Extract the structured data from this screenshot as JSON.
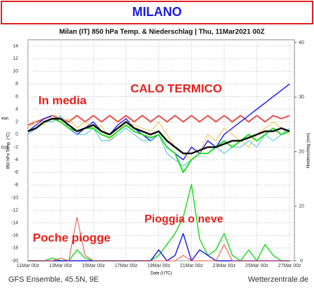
{
  "chart_data": {
    "type": "line",
    "banner": "MILANO",
    "title": "Milan  (IT)  850 hPa Temp. & Niederschlag | Thu, 11Mar2021 00Z",
    "ylabel": "850 hPa Temp. (°C)",
    "y2label": "Niederschlag (mm)",
    "xlabel": "Date (UTC)",
    "cut_labels": [
      "ean",
      "010"
    ],
    "annotations": [
      "In media",
      "CALO TERMICO",
      "Pioggia o neve",
      "Poche piogge"
    ],
    "footer_left": "GFS Ensemble, 45.5N, 9E",
    "footer_right": "Wetterzentrale.de",
    "grid": true,
    "x": [
      0,
      0.5,
      1,
      1.5,
      2,
      2.5,
      3,
      3.5,
      4,
      4.5,
      5,
      5.5,
      6,
      6.5,
      7,
      7.5,
      8,
      8.5,
      9,
      9.5,
      10,
      10.5,
      11,
      11.5,
      12,
      12.5,
      13,
      13.5,
      14,
      14.5,
      15,
      15.5,
      16
    ],
    "xlim": [
      0,
      16.3
    ],
    "xticks": [
      {
        "value": 0,
        "label": "11Mar 00z"
      },
      {
        "value": 2,
        "label": "13Mar 00z"
      },
      {
        "value": 4,
        "label": "15Mar 00z"
      },
      {
        "value": 6,
        "label": "17Mar 00z"
      },
      {
        "value": 8,
        "label": "19Mar 00z"
      },
      {
        "value": 10,
        "label": "21Mar 00z"
      },
      {
        "value": 12,
        "label": "23Mar 00z"
      },
      {
        "value": 14,
        "label": "25Mar 00z"
      },
      {
        "value": 16,
        "label": "27Mar 00z"
      }
    ],
    "ylim": [
      -20,
      15
    ],
    "yticks": [
      14,
      12,
      10,
      8,
      6,
      4,
      2,
      0,
      -2,
      -4,
      -6,
      -8,
      -10,
      -12,
      -14,
      -16,
      -18,
      -20
    ],
    "y2lim": [
      0,
      40.5
    ],
    "y2ticks": [
      0,
      10,
      20,
      30,
      40
    ],
    "series": [
      {
        "color": "#e8504a",
        "width": 2,
        "values": [
          1.5,
          2,
          2.5,
          3,
          2.5,
          2,
          3,
          2,
          3,
          2,
          3,
          2,
          3,
          2,
          3,
          2,
          3,
          2,
          3,
          2,
          3,
          2,
          3,
          2,
          3,
          2,
          3,
          2,
          3,
          2,
          3,
          2.5,
          3
        ]
      },
      {
        "color": "#2222ee",
        "width": 1.5,
        "values": [
          0.5,
          1.5,
          2.5,
          3,
          2,
          1,
          0,
          1,
          2,
          0.5,
          0,
          1.5,
          2.5,
          1,
          0,
          -1,
          0,
          -2,
          -3,
          -4,
          -2,
          -3,
          -1,
          -2,
          0,
          1,
          2,
          3,
          4,
          5,
          6,
          7,
          8
        ]
      },
      {
        "color": "#f0c040",
        "width": 1,
        "values": [
          1,
          2,
          1.5,
          3,
          2,
          2.5,
          1,
          2,
          1,
          1.5,
          -1,
          0.5,
          2,
          1.5,
          1,
          0.5,
          2,
          0,
          -2,
          -3,
          -4,
          -3,
          0,
          -1,
          1,
          0,
          -1,
          -2,
          0,
          1,
          2,
          1,
          0
        ]
      },
      {
        "color": "#40c0e0",
        "width": 1,
        "values": [
          0,
          1,
          2,
          2,
          3,
          1,
          0,
          0,
          1,
          -1,
          -1,
          0,
          1,
          0,
          -1,
          -1,
          0,
          -3,
          -4,
          -5,
          -4,
          -3,
          -3,
          -2,
          -3,
          -2,
          -2,
          -1,
          -2,
          0,
          -1,
          0,
          1
        ]
      },
      {
        "color": "#22dd22",
        "width": 2,
        "values": [
          0.5,
          1,
          2,
          2.5,
          2,
          1,
          0.5,
          1,
          1,
          0,
          -0.5,
          0.5,
          1.5,
          0.5,
          0,
          -0.5,
          0,
          -2,
          -3,
          -6,
          -4,
          -3,
          -3,
          -2,
          -1,
          -2,
          -1,
          0,
          -1,
          0,
          1,
          0,
          0.5
        ]
      },
      {
        "color": "#111111",
        "width": 2.5,
        "values": [
          0.5,
          1,
          2,
          2.5,
          2.5,
          1.5,
          0.5,
          1,
          1.5,
          0.5,
          0,
          1,
          2,
          1,
          0.5,
          0,
          0.5,
          -1,
          -2,
          -3,
          -3,
          -2.5,
          -2,
          -2,
          -1.5,
          -1,
          -1,
          -0.5,
          0,
          0.5,
          0.5,
          1,
          0.5
        ]
      },
      {
        "axis": "y2",
        "color": "#22dd22",
        "width": 1.5,
        "values": [
          0,
          0,
          0,
          0.5,
          0,
          0,
          2,
          0.5,
          0,
          0,
          0,
          0,
          0,
          0,
          0,
          0,
          1,
          3,
          5,
          8,
          14,
          4,
          1,
          2,
          5,
          1,
          0,
          2,
          0,
          3,
          1,
          0,
          0
        ]
      },
      {
        "axis": "y2",
        "color": "#2222ee",
        "width": 1.5,
        "values": [
          0,
          0,
          0,
          0,
          0,
          0,
          0,
          0,
          0,
          0,
          0,
          0,
          0,
          0,
          0,
          0,
          2,
          0,
          1,
          5,
          0,
          2,
          1,
          0,
          0,
          0,
          0,
          0,
          0,
          0,
          0,
          0,
          0
        ]
      },
      {
        "axis": "y2",
        "color": "#e8504a",
        "width": 1,
        "values": [
          0,
          0,
          0,
          0,
          0.5,
          0,
          8,
          1,
          0,
          0,
          0,
          0,
          0,
          0,
          0,
          0,
          0,
          0,
          0,
          1,
          0,
          0,
          0,
          0,
          3,
          0,
          0,
          0,
          0,
          0,
          0,
          0,
          0
        ]
      }
    ]
  }
}
